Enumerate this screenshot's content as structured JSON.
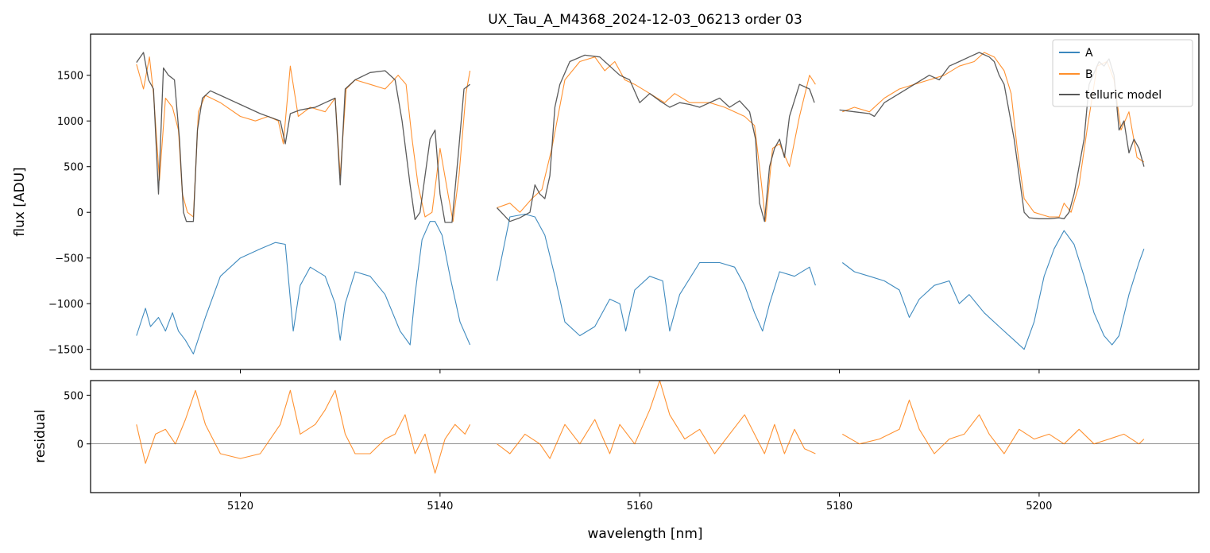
{
  "title": "UX_Tau_A_M4368_2024-12-03_06213  order 03",
  "colors": {
    "A": "#1f77b4",
    "B": "#ff7f0e",
    "model": "#404040",
    "axis": "#000000"
  },
  "chart_data": [
    {
      "type": "line",
      "panel": "main",
      "title": "UX_Tau_A_M4368_2024-12-03_06213  order 03",
      "xlabel": "",
      "ylabel": "flux [ADU]",
      "xlim": [
        5105,
        5216
      ],
      "ylim": [
        -1720,
        1950
      ],
      "xticks": [
        5120,
        5140,
        5160,
        5180,
        5200
      ],
      "yticks": [
        -1500,
        -1000,
        -500,
        0,
        500,
        1000,
        1500
      ],
      "ytick_labels": [
        "−1500",
        "−1000",
        "−500",
        "0",
        "500",
        "1000",
        "1500"
      ],
      "legend": {
        "placement": "top-right",
        "entries": [
          "A",
          "B",
          "telluric model"
        ]
      },
      "series": [
        {
          "name": "A",
          "x": [
            5109.6,
            5110.5,
            5111.0,
            5111.8,
            5112.5,
            5113.2,
            5113.8,
            5114.5,
            5115.3,
            5116.5,
            5118.0,
            5120.0,
            5122.0,
            5123.5,
            5124.5,
            5125.3,
            5126.0,
            5127.0,
            5128.5,
            5129.5,
            5130.0,
            5130.5,
            5131.5,
            5133.0,
            5134.5,
            5136.0,
            5137.0,
            5137.5,
            5138.2,
            5139.0,
            5139.5,
            5140.2,
            5141.0,
            5142.0,
            5143.0
          ],
          "y": [
            -1350,
            -1050,
            -1250,
            -1150,
            -1300,
            -1100,
            -1300,
            -1400,
            -1550,
            -1150,
            -700,
            -500,
            -400,
            -330,
            -350,
            -1300,
            -800,
            -600,
            -700,
            -1000,
            -1400,
            -1000,
            -650,
            -700,
            -900,
            -1300,
            -1450,
            -900,
            -300,
            -100,
            -100,
            -250,
            -700,
            -1200,
            -1450
          ]
        },
        {
          "name": "A",
          "x": [
            5145.7,
            5147.0,
            5148.5,
            5149.5,
            5150.5,
            5151.5,
            5152.5,
            5154.0,
            5155.5,
            5157.0,
            5158.0,
            5158.6,
            5159.5,
            5161.0,
            5162.3,
            5163.0,
            5164.0,
            5166.0,
            5168.0,
            5169.5,
            5170.5,
            5171.5,
            5172.3,
            5173.0,
            5174.0,
            5175.5,
            5177.0,
            5177.6
          ],
          "y": [
            -750,
            -50,
            -20,
            -50,
            -250,
            -700,
            -1200,
            -1350,
            -1250,
            -950,
            -1000,
            -1300,
            -850,
            -700,
            -750,
            -1300,
            -900,
            -550,
            -550,
            -600,
            -800,
            -1100,
            -1300,
            -1000,
            -650,
            -700,
            -600,
            -800
          ]
        },
        {
          "name": "A",
          "x": [
            5180.3,
            5181.5,
            5183.0,
            5184.5,
            5186.0,
            5187.0,
            5188.0,
            5189.5,
            5191.0,
            5192.0,
            5193.0,
            5194.5,
            5196.0,
            5197.5,
            5198.5,
            5199.5,
            5200.5,
            5201.5,
            5202.5,
            5203.5,
            5204.5,
            5205.5,
            5206.5,
            5207.3,
            5208.0,
            5209.0,
            5210.0,
            5210.5
          ],
          "y": [
            -550,
            -650,
            -700,
            -750,
            -850,
            -1150,
            -950,
            -800,
            -750,
            -1000,
            -900,
            -1100,
            -1250,
            -1400,
            -1500,
            -1200,
            -700,
            -400,
            -200,
            -350,
            -700,
            -1100,
            -1350,
            -1450,
            -1350,
            -900,
            -550,
            -400
          ]
        },
        {
          "name": "B",
          "x": [
            5109.6,
            5110.3,
            5110.9,
            5111.3,
            5111.9,
            5112.5,
            5113.2,
            5113.8,
            5114.2,
            5114.7,
            5115.3,
            5115.8,
            5116.5,
            5118.0,
            5120.0,
            5121.5,
            5122.8,
            5123.8,
            5124.3,
            5125.0,
            5125.8,
            5127.0,
            5128.5,
            5129.5,
            5130.0,
            5130.6,
            5131.5,
            5133.0,
            5134.5,
            5135.8,
            5136.6,
            5137.2,
            5137.8,
            5138.5,
            5139.2,
            5140.0,
            5140.8,
            5141.3,
            5141.9,
            5142.6,
            5143.0
          ],
          "y": [
            1620,
            1350,
            1700,
            1300,
            350,
            1250,
            1150,
            900,
            200,
            0,
            -50,
            1100,
            1280,
            1200,
            1050,
            1000,
            1050,
            1000,
            750,
            1600,
            1050,
            1150,
            1100,
            1250,
            400,
            1350,
            1450,
            1400,
            1350,
            1500,
            1400,
            800,
            300,
            -50,
            0,
            700,
            200,
            -100,
            400,
            1300,
            1550
          ]
        },
        {
          "name": "B",
          "x": [
            5145.7,
            5147.0,
            5148.0,
            5149.2,
            5150.2,
            5151.2,
            5152.5,
            5154.0,
            5155.5,
            5156.5,
            5157.5,
            5158.5,
            5159.5,
            5161.0,
            5162.5,
            5163.5,
            5165.0,
            5167.0,
            5168.5,
            5169.5,
            5170.5,
            5171.5,
            5172.1,
            5172.6,
            5173.3,
            5174.0,
            5175.0,
            5176.0,
            5177.0,
            5177.6
          ],
          "y": [
            50,
            100,
            0,
            150,
            250,
            700,
            1450,
            1650,
            1700,
            1550,
            1650,
            1450,
            1400,
            1300,
            1200,
            1300,
            1200,
            1200,
            1150,
            1100,
            1050,
            950,
            400,
            -100,
            700,
            750,
            500,
            1050,
            1500,
            1400
          ]
        },
        {
          "name": "B",
          "x": [
            5180.3,
            5181.5,
            5183.0,
            5184.5,
            5186.0,
            5187.5,
            5189.0,
            5190.5,
            5192.0,
            5193.5,
            5194.5,
            5195.5,
            5196.5,
            5197.2,
            5197.8,
            5198.5,
            5199.5,
            5201.0,
            5202.0,
            5202.5,
            5203.2,
            5204.0,
            5204.8,
            5205.8,
            5206.8,
            5207.5,
            5208.2,
            5209.0,
            5209.8,
            5210.5
          ],
          "y": [
            1100,
            1150,
            1100,
            1250,
            1350,
            1400,
            1450,
            1500,
            1600,
            1650,
            1750,
            1700,
            1550,
            1300,
            700,
            150,
            0,
            -50,
            -50,
            100,
            0,
            300,
            900,
            1600,
            1650,
            1450,
            900,
            1100,
            600,
            550
          ]
        },
        {
          "name": "telluric model",
          "x": [
            5109.6,
            5110.3,
            5110.8,
            5111.3,
            5111.8,
            5112.3,
            5112.8,
            5113.4,
            5113.9,
            5114.3,
            5114.6,
            5115.3,
            5115.7,
            5116.2,
            5117.0,
            5118.0,
            5120.0,
            5122.0,
            5124.0,
            5124.5,
            5125.0,
            5126.0,
            5127.5,
            5128.5,
            5129.5,
            5130.0,
            5130.5,
            5131.5,
            5133.0,
            5134.5,
            5135.5,
            5136.2,
            5137.0,
            5137.5,
            5138.0,
            5139.0,
            5139.5,
            5140.0,
            5140.5,
            5141.2,
            5141.8,
            5142.4,
            5143.0
          ],
          "y": [
            1640,
            1750,
            1450,
            1350,
            200,
            1580,
            1500,
            1450,
            800,
            0,
            -100,
            -100,
            900,
            1250,
            1330,
            1280,
            1180,
            1080,
            1000,
            750,
            1080,
            1120,
            1150,
            1200,
            1250,
            300,
            1350,
            1450,
            1530,
            1550,
            1450,
            1000,
            300,
            -80,
            0,
            800,
            900,
            200,
            -110,
            -110,
            600,
            1350,
            1400
          ]
        },
        {
          "name": "telluric model",
          "x": [
            5145.7,
            5147.0,
            5148.0,
            5149.0,
            5149.5,
            5150.0,
            5150.5,
            5151.0,
            5151.5,
            5152.0,
            5153.0,
            5154.5,
            5156.0,
            5157.0,
            5158.0,
            5159.0,
            5160.0,
            5161.0,
            5162.0,
            5163.0,
            5164.0,
            5165.0,
            5166.0,
            5167.0,
            5168.0,
            5169.0,
            5170.0,
            5171.0,
            5171.6,
            5172.0,
            5172.5,
            5173.0,
            5173.5,
            5174.0,
            5174.5,
            5175.0,
            5176.0,
            5177.0,
            5177.5
          ],
          "y": [
            50,
            -100,
            -60,
            0,
            300,
            200,
            150,
            400,
            1150,
            1400,
            1650,
            1720,
            1700,
            1600,
            1500,
            1450,
            1200,
            1300,
            1220,
            1150,
            1200,
            1180,
            1150,
            1200,
            1250,
            1150,
            1220,
            1100,
            800,
            100,
            -100,
            500,
            700,
            800,
            600,
            1050,
            1400,
            1350,
            1200
          ]
        },
        {
          "name": "telluric model",
          "x": [
            5180.0,
            5181.5,
            5183.0,
            5183.5,
            5184.5,
            5186.0,
            5187.5,
            5189.0,
            5190.0,
            5191.0,
            5192.0,
            5193.0,
            5194.0,
            5195.0,
            5195.5,
            5196.0,
            5196.5,
            5197.0,
            5197.5,
            5198.0,
            5198.5,
            5199.0,
            5200.0,
            5201.0,
            5202.0,
            5202.5,
            5203.0,
            5203.5,
            5204.0,
            5204.5,
            5205.0,
            5206.0,
            5206.5,
            5207.0,
            5207.5,
            5208.0,
            5208.5,
            5209.0,
            5209.5,
            5210.0,
            5210.5
          ],
          "y": [
            1120,
            1100,
            1080,
            1050,
            1200,
            1300,
            1400,
            1500,
            1450,
            1600,
            1650,
            1700,
            1750,
            1700,
            1650,
            1500,
            1400,
            1100,
            800,
            400,
            0,
            -60,
            -70,
            -70,
            -60,
            -70,
            0,
            200,
            500,
            800,
            1400,
            1650,
            1600,
            1680,
            1500,
            900,
            1000,
            650,
            800,
            700,
            500
          ]
        }
      ]
    },
    {
      "type": "line",
      "panel": "residual",
      "xlabel": "wavelength [nm]",
      "ylabel": "residual",
      "xlim": [
        5105,
        5216
      ],
      "ylim": [
        -500,
        650
      ],
      "xticks": [
        5120,
        5140,
        5160,
        5180,
        5200
      ],
      "yticks": [
        0,
        500
      ],
      "zero_line": true,
      "series": [
        {
          "name": "B",
          "x": [
            5109.6,
            5110.5,
            5111.5,
            5112.5,
            5113.5,
            5114.5,
            5115.5,
            5116.5,
            5118.0,
            5120.0,
            5122.0,
            5124.0,
            5125.0,
            5126.0,
            5127.5,
            5128.5,
            5129.5,
            5130.5,
            5131.5,
            5133.0,
            5134.5,
            5135.5,
            5136.5,
            5137.5,
            5138.5,
            5139.5,
            5140.5,
            5141.5,
            5142.5,
            5143.0
          ],
          "y": [
            200,
            -200,
            100,
            150,
            0,
            250,
            550,
            200,
            -100,
            -150,
            -100,
            200,
            550,
            100,
            200,
            350,
            550,
            100,
            -100,
            -100,
            50,
            100,
            300,
            -100,
            100,
            -300,
            50,
            200,
            100,
            200
          ]
        },
        {
          "name": "B",
          "x": [
            5145.7,
            5147.0,
            5148.5,
            5150.0,
            5151.0,
            5152.5,
            5154.0,
            5155.5,
            5157.0,
            5158.0,
            5159.5,
            5161.0,
            5162.0,
            5163.0,
            5164.5,
            5166.0,
            5167.5,
            5169.0,
            5170.5,
            5171.5,
            5172.5,
            5173.5,
            5174.5,
            5175.5,
            5176.5,
            5177.6
          ],
          "y": [
            0,
            -100,
            100,
            0,
            -150,
            200,
            0,
            250,
            -100,
            200,
            0,
            350,
            650,
            300,
            50,
            150,
            -100,
            100,
            300,
            100,
            -100,
            200,
            -100,
            150,
            -50,
            -100
          ]
        },
        {
          "name": "B",
          "x": [
            5180.3,
            5182.0,
            5184.0,
            5186.0,
            5187.0,
            5188.0,
            5189.5,
            5191.0,
            5192.5,
            5194.0,
            5195.0,
            5196.5,
            5198.0,
            5199.5,
            5201.0,
            5202.5,
            5204.0,
            5205.5,
            5207.0,
            5208.5,
            5210.0,
            5210.5
          ],
          "y": [
            100,
            0,
            50,
            150,
            450,
            150,
            -100,
            50,
            100,
            300,
            100,
            -100,
            150,
            50,
            100,
            0,
            150,
            0,
            50,
            100,
            0,
            50
          ]
        }
      ]
    }
  ]
}
